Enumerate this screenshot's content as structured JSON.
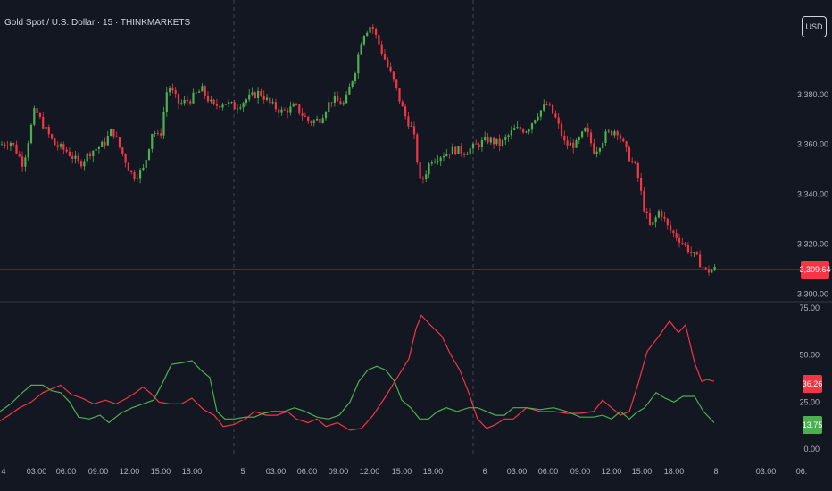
{
  "header": {
    "title": "Gold Spot / U.S. Dollar · 15 · THINKMARKETS",
    "currency_button": "USD"
  },
  "colors": {
    "background": "#131722",
    "up": "#4caf50",
    "down": "#f23645",
    "text": "#b2b5be",
    "grid_divider": "#2a2e39",
    "price_line": "#f23645"
  },
  "last_price": "3,309.64",
  "chart_data": [
    {
      "type": "candlestick",
      "title": "Gold Spot / U.S. Dollar · 15 · THINKMARKETS",
      "y_ticks": [
        "3,380.00",
        "3,360.00",
        "3,340.00",
        "3,320.00",
        "3,300.00"
      ],
      "y_tick_values": [
        3380,
        3360,
        3340,
        3320,
        3300
      ],
      "ylim": [
        3298,
        3415
      ],
      "current_price": 3309.64,
      "close_path": [
        [
          0,
          3360
        ],
        [
          12,
          3361
        ],
        [
          25,
          3352
        ],
        [
          38,
          3374
        ],
        [
          50,
          3366
        ],
        [
          60,
          3360
        ],
        [
          75,
          3357
        ],
        [
          88,
          3352
        ],
        [
          100,
          3357
        ],
        [
          115,
          3360
        ],
        [
          125,
          3366
        ],
        [
          135,
          3357
        ],
        [
          148,
          3347
        ],
        [
          160,
          3350
        ],
        [
          170,
          3366
        ],
        [
          178,
          3362
        ],
        [
          187,
          3384
        ],
        [
          200,
          3376
        ],
        [
          212,
          3378
        ],
        [
          225,
          3382
        ],
        [
          238,
          3375
        ],
        [
          250,
          3377
        ],
        [
          262,
          3375
        ],
        [
          275,
          3378
        ],
        [
          290,
          3381
        ],
        [
          302,
          3376
        ],
        [
          315,
          3373
        ],
        [
          330,
          3375
        ],
        [
          345,
          3369
        ],
        [
          357,
          3370
        ],
        [
          370,
          3378
        ],
        [
          385,
          3376
        ],
        [
          397,
          3390
        ],
        [
          405,
          3404
        ],
        [
          415,
          3408
        ],
        [
          428,
          3396
        ],
        [
          440,
          3385
        ],
        [
          452,
          3372
        ],
        [
          462,
          3365
        ],
        [
          470,
          3344
        ],
        [
          482,
          3354
        ],
        [
          495,
          3356
        ],
        [
          508,
          3358
        ],
        [
          520,
          3357
        ],
        [
          530,
          3359
        ],
        [
          545,
          3362
        ],
        [
          560,
          3360
        ],
        [
          575,
          3366
        ],
        [
          590,
          3366
        ],
        [
          600,
          3372
        ],
        [
          612,
          3376
        ],
        [
          622,
          3370
        ],
        [
          632,
          3360
        ],
        [
          645,
          3360
        ],
        [
          655,
          3366
        ],
        [
          665,
          3357
        ],
        [
          678,
          3364
        ],
        [
          690,
          3366
        ],
        [
          702,
          3356
        ],
        [
          712,
          3350
        ],
        [
          720,
          3335
        ],
        [
          728,
          3326
        ],
        [
          738,
          3334
        ],
        [
          748,
          3326
        ],
        [
          760,
          3322
        ],
        [
          770,
          3318
        ],
        [
          780,
          3314
        ],
        [
          790,
          3309
        ],
        [
          800,
          3310
        ]
      ]
    },
    {
      "type": "line",
      "y_ticks": [
        "75.00",
        "50.00",
        "25.00",
        "0.00"
      ],
      "y_tick_values": [
        75,
        50,
        25,
        0
      ],
      "ylim": [
        0,
        75
      ],
      "series": [
        {
          "color": "#f23645",
          "last_value": "36.26",
          "points": [
            [
              0,
              15
            ],
            [
              10,
              18
            ],
            [
              22,
              22
            ],
            [
              35,
              25
            ],
            [
              48,
              30
            ],
            [
              58,
              32
            ],
            [
              68,
              34
            ],
            [
              80,
              29
            ],
            [
              92,
              27
            ],
            [
              105,
              24
            ],
            [
              118,
              26
            ],
            [
              130,
              24
            ],
            [
              142,
              27
            ],
            [
              152,
              30
            ],
            [
              160,
              33
            ],
            [
              168,
              30
            ],
            [
              178,
              25
            ],
            [
              190,
              24
            ],
            [
              203,
              24
            ],
            [
              215,
              27
            ],
            [
              228,
              21
            ],
            [
              240,
              18
            ],
            [
              250,
              12
            ],
            [
              262,
              13
            ],
            [
              275,
              16
            ],
            [
              285,
              20
            ],
            [
              298,
              18
            ],
            [
              310,
              18
            ],
            [
              322,
              20
            ],
            [
              332,
              16
            ],
            [
              345,
              14
            ],
            [
              355,
              16
            ],
            [
              365,
              12
            ],
            [
              378,
              14
            ],
            [
              392,
              10
            ],
            [
              405,
              11
            ],
            [
              418,
              18
            ],
            [
              432,
              28
            ],
            [
              445,
              38
            ],
            [
              458,
              48
            ],
            [
              466,
              64
            ],
            [
              472,
              71
            ],
            [
              482,
              66
            ],
            [
              495,
              60
            ],
            [
              505,
              50
            ],
            [
              515,
              42
            ],
            [
              525,
              30
            ],
            [
              535,
              16
            ],
            [
              545,
              11
            ],
            [
              555,
              13
            ],
            [
              565,
              16
            ],
            [
              575,
              16
            ],
            [
              590,
              22
            ],
            [
              605,
              20
            ],
            [
              620,
              20
            ],
            [
              635,
              19
            ],
            [
              650,
              19
            ],
            [
              665,
              20
            ],
            [
              675,
              26
            ],
            [
              685,
              22
            ],
            [
              695,
              18
            ],
            [
              705,
              20
            ],
            [
              715,
              35
            ],
            [
              725,
              52
            ],
            [
              738,
              60
            ],
            [
              750,
              68
            ],
            [
              760,
              62
            ],
            [
              768,
              66
            ],
            [
              778,
              46
            ],
            [
              786,
              36
            ],
            [
              792,
              37
            ],
            [
              800,
              36
            ]
          ]
        },
        {
          "color": "#4caf50",
          "last_value": "13.75",
          "points": [
            [
              0,
              20
            ],
            [
              12,
              24
            ],
            [
              25,
              30
            ],
            [
              35,
              34
            ],
            [
              48,
              34
            ],
            [
              58,
              31
            ],
            [
              68,
              30
            ],
            [
              78,
              25
            ],
            [
              88,
              17
            ],
            [
              100,
              16
            ],
            [
              112,
              18
            ],
            [
              122,
              14
            ],
            [
              135,
              19
            ],
            [
              148,
              22
            ],
            [
              160,
              24
            ],
            [
              172,
              26
            ],
            [
              182,
              35
            ],
            [
              192,
              45
            ],
            [
              205,
              46
            ],
            [
              215,
              47
            ],
            [
              225,
              42
            ],
            [
              235,
              38
            ],
            [
              243,
              20
            ],
            [
              252,
              16
            ],
            [
              262,
              16
            ],
            [
              275,
              17
            ],
            [
              285,
              17
            ],
            [
              295,
              19
            ],
            [
              305,
              20
            ],
            [
              318,
              20
            ],
            [
              330,
              22
            ],
            [
              342,
              20
            ],
            [
              355,
              17
            ],
            [
              368,
              16
            ],
            [
              380,
              18
            ],
            [
              392,
              25
            ],
            [
              402,
              36
            ],
            [
              412,
              42
            ],
            [
              422,
              44
            ],
            [
              432,
              42
            ],
            [
              442,
              36
            ],
            [
              450,
              26
            ],
            [
              460,
              22
            ],
            [
              470,
              16
            ],
            [
              480,
              16
            ],
            [
              490,
              20
            ],
            [
              500,
              22
            ],
            [
              512,
              20
            ],
            [
              525,
              22
            ],
            [
              535,
              22
            ],
            [
              545,
              20
            ],
            [
              555,
              18
            ],
            [
              565,
              18
            ],
            [
              575,
              22
            ],
            [
              590,
              22
            ],
            [
              605,
              21
            ],
            [
              620,
              22
            ],
            [
              635,
              20
            ],
            [
              650,
              17
            ],
            [
              665,
              17
            ],
            [
              675,
              18
            ],
            [
              685,
              16
            ],
            [
              695,
              20
            ],
            [
              705,
              16
            ],
            [
              712,
              19
            ],
            [
              722,
              22
            ],
            [
              735,
              30
            ],
            [
              745,
              27
            ],
            [
              755,
              25
            ],
            [
              765,
              28
            ],
            [
              778,
              28
            ],
            [
              788,
              20
            ],
            [
              800,
              14
            ]
          ]
        }
      ]
    }
  ],
  "x_axis": {
    "labels": [
      {
        "text": "4",
        "x": 4
      },
      {
        "text": "03:00",
        "x": 41
      },
      {
        "text": "06:00",
        "x": 74
      },
      {
        "text": "09:00",
        "x": 110
      },
      {
        "text": "12:00",
        "x": 145
      },
      {
        "text": "15:00",
        "x": 180
      },
      {
        "text": "18:00",
        "x": 215
      },
      {
        "text": "5",
        "x": 272
      },
      {
        "text": "03:00",
        "x": 309
      },
      {
        "text": "06:00",
        "x": 344
      },
      {
        "text": "09:00",
        "x": 379
      },
      {
        "text": "12:00",
        "x": 414
      },
      {
        "text": "15:00",
        "x": 450
      },
      {
        "text": "18:00",
        "x": 485
      },
      {
        "text": "6",
        "x": 543
      },
      {
        "text": "03:00",
        "x": 579
      },
      {
        "text": "06:00",
        "x": 614
      },
      {
        "text": "09:00",
        "x": 650
      },
      {
        "text": "12:00",
        "x": 685
      },
      {
        "text": "15:00",
        "x": 719
      },
      {
        "text": "18:00",
        "x": 755
      },
      {
        "text": "8",
        "x": 802
      },
      {
        "text": "03:00",
        "x": 858
      },
      {
        "text": "06:",
        "x": 898
      }
    ]
  }
}
